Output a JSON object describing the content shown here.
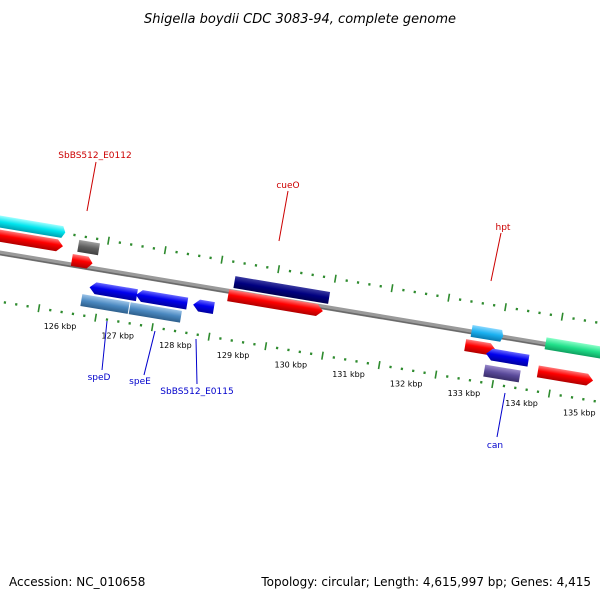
{
  "title": "Shigella boydii CDC 3083-94, complete genome",
  "footer": {
    "accession": "Accession: NC_010658",
    "summary": "Topology: circular; Length: 4,615,997 bp; Genes: 4,415"
  },
  "scale": {
    "tick_labels": [
      "126 kbp",
      "127 kbp",
      "128 kbp",
      "129 kbp",
      "130 kbp",
      "131 kbp",
      "132 kbp",
      "133 kbp",
      "134 kbp",
      "135 kbp"
    ]
  },
  "genes": {
    "labels": [
      "SbBS512_E0112",
      "cueO",
      "hpt",
      "speD",
      "speE",
      "SbBS512_E0115",
      "can"
    ]
  },
  "colors": {
    "backbone": "#808080",
    "tick": "#2e8b2e",
    "forward_label": "#cc0000",
    "reverse_label": "#0000cc",
    "cds_forward": "#ff0000",
    "cds_reverse": "#0000ee"
  }
}
